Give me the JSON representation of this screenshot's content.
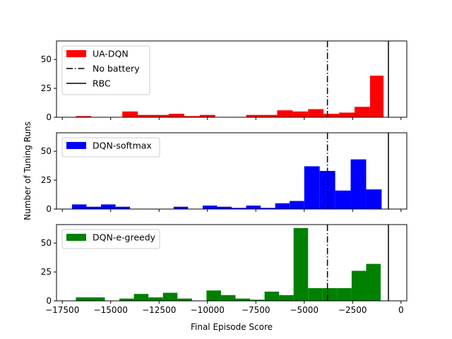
{
  "chart_data": {
    "type": "bar",
    "xlabel": "Final Episode Score",
    "ylabel": "Number of Tuning Runs",
    "xlim": [
      -17800,
      300
    ],
    "x_ticks": [
      -17500,
      -15000,
      -12500,
      -10000,
      -7500,
      -5000,
      -2500,
      0
    ],
    "x_tick_labels": [
      "−17500",
      "−15000",
      "−12500",
      "−10000",
      "−7500",
      "−5000",
      "−2500",
      "0"
    ],
    "ylim": [
      0,
      66
    ],
    "y_ticks": [
      0,
      25,
      50
    ],
    "y_tick_labels": [
      "0",
      "25",
      "50"
    ],
    "reference_lines": [
      {
        "name": "No battery",
        "x": -3800,
        "style": "dashdot",
        "color": "#000000"
      },
      {
        "name": "RBC",
        "x": -650,
        "style": "solid",
        "color": "#000000"
      }
    ],
    "panels": [
      {
        "series": "UA-DQN",
        "color": "#ff0000",
        "legend": [
          "UA-DQN",
          "No battery",
          "RBC"
        ],
        "bins": [
          [
            -16800,
            -16000,
            1
          ],
          [
            -16000,
            -15200,
            0
          ],
          [
            -15200,
            -14400,
            0
          ],
          [
            -14400,
            -13600,
            5
          ],
          [
            -13600,
            -12800,
            2
          ],
          [
            -12800,
            -12000,
            2
          ],
          [
            -12000,
            -11200,
            3
          ],
          [
            -11200,
            -10400,
            1
          ],
          [
            -10400,
            -9600,
            2
          ],
          [
            -9600,
            -8800,
            0
          ],
          [
            -8800,
            -8000,
            0
          ],
          [
            -8000,
            -7200,
            2
          ],
          [
            -7200,
            -6400,
            2
          ],
          [
            -6400,
            -5600,
            6
          ],
          [
            -5600,
            -4800,
            5
          ],
          [
            -4800,
            -4000,
            7
          ],
          [
            -4000,
            -3200,
            3
          ],
          [
            -3200,
            -2400,
            4
          ],
          [
            -2400,
            -1600,
            9
          ],
          [
            -1600,
            -900,
            36
          ]
        ]
      },
      {
        "series": "DQN-softmax",
        "color": "#0000ff",
        "legend": [
          "DQN-softmax"
        ],
        "bins": [
          [
            -17000,
            -16250,
            4
          ],
          [
            -16250,
            -15500,
            2
          ],
          [
            -15500,
            -14750,
            4
          ],
          [
            -14750,
            -14000,
            2
          ],
          [
            -14000,
            -13250,
            0
          ],
          [
            -13250,
            -12500,
            0
          ],
          [
            -12500,
            -11750,
            0
          ],
          [
            -11750,
            -11000,
            2
          ],
          [
            -11000,
            -10250,
            0
          ],
          [
            -10250,
            -9500,
            3
          ],
          [
            -9500,
            -8750,
            2
          ],
          [
            -8750,
            -8000,
            1
          ],
          [
            -8000,
            -7250,
            3
          ],
          [
            -7250,
            -6500,
            1
          ],
          [
            -6500,
            -5750,
            5
          ],
          [
            -5750,
            -5000,
            7
          ],
          [
            -5000,
            -4200,
            37
          ],
          [
            -4200,
            -3400,
            33
          ],
          [
            -3400,
            -2600,
            16
          ],
          [
            -2600,
            -1800,
            43
          ],
          [
            -1800,
            -1000,
            17
          ]
        ]
      },
      {
        "series": "DQN-e-greedy",
        "color": "#008000",
        "legend": [
          "DQN-e-greedy"
        ],
        "bins": [
          [
            -16800,
            -16050,
            3
          ],
          [
            -16050,
            -15300,
            3
          ],
          [
            -15300,
            -14550,
            0
          ],
          [
            -14550,
            -13800,
            2
          ],
          [
            -13800,
            -13050,
            6
          ],
          [
            -13050,
            -12300,
            3
          ],
          [
            -12300,
            -11550,
            7
          ],
          [
            -11550,
            -10800,
            2
          ],
          [
            -10800,
            -10050,
            0
          ],
          [
            -10050,
            -9300,
            9
          ],
          [
            -9300,
            -8550,
            5
          ],
          [
            -8550,
            -7800,
            2
          ],
          [
            -7800,
            -7050,
            1
          ],
          [
            -7050,
            -6300,
            8
          ],
          [
            -6300,
            -5550,
            5
          ],
          [
            -5550,
            -4800,
            63
          ],
          [
            -4800,
            -4050,
            11
          ],
          [
            -4050,
            -3300,
            11
          ],
          [
            -3300,
            -2550,
            11
          ],
          [
            -2550,
            -1800,
            26
          ],
          [
            -1800,
            -1050,
            32
          ]
        ]
      }
    ]
  }
}
